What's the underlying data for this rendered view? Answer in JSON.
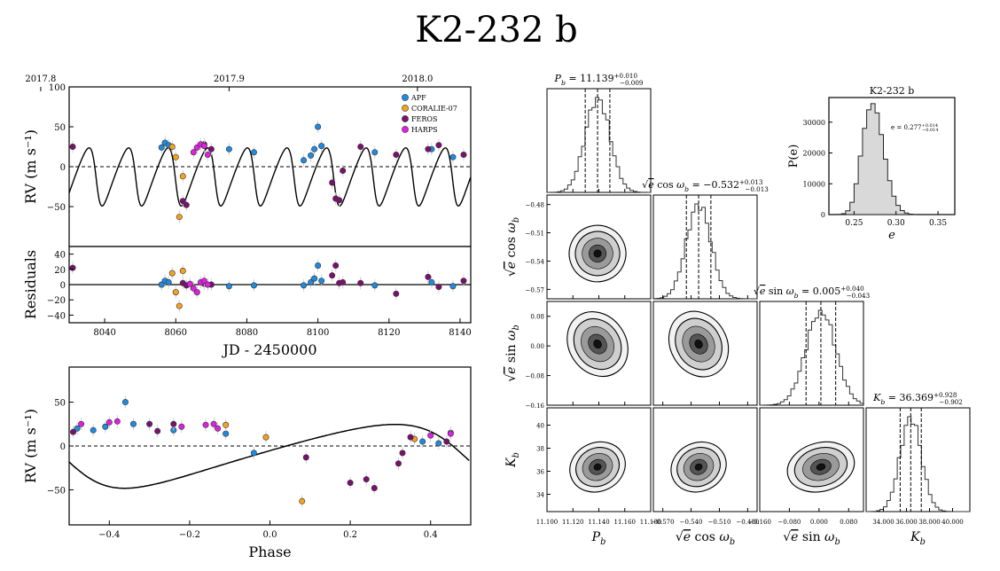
{
  "figure_title": "K2-232 b",
  "chart_data": [
    {
      "id": "rv_time",
      "type": "scatter",
      "title": "",
      "xlabel": "",
      "ylabel": "RV (m s⁻¹)",
      "xlim": [
        8030,
        8143
      ],
      "ylim": [
        -100,
        100
      ],
      "xticks": [],
      "yticks": [
        -50,
        0,
        50,
        100
      ],
      "top_xticks": [
        {
          "value": 8022,
          "label": "2017.8"
        },
        {
          "value": 8075,
          "label": "2017.9"
        },
        {
          "value": 8128,
          "label": "2018.0"
        }
      ],
      "model": {
        "name": "Keplerian model",
        "period": 11.139,
        "K": 36.4,
        "e": 0.28,
        "tp": 8060
      },
      "legend": {
        "position": "top-right",
        "entries": [
          "APF",
          "CORALIE-07",
          "FEROS",
          "HARPS"
        ]
      },
      "series": [
        {
          "name": "APF",
          "color": "#1f8ae0",
          "points": [
            [
              8056,
              24
            ],
            [
              8057,
              30
            ],
            [
              8058,
              27
            ],
            [
              8075,
              22
            ],
            [
              8082,
              18
            ],
            [
              8096,
              8
            ],
            [
              8098,
              14
            ],
            [
              8099,
              22
            ],
            [
              8100,
              50
            ],
            [
              8101,
              26
            ],
            [
              8116,
              18
            ],
            [
              8132,
              22
            ],
            [
              8138,
              12
            ]
          ]
        },
        {
          "name": "CORALIE-07",
          "color": "#f5a21e",
          "points": [
            [
              8059,
              25
            ],
            [
              8060,
              12
            ],
            [
              8061,
              -63
            ],
            [
              8062,
              -12
            ]
          ]
        },
        {
          "name": "FEROS",
          "color": "#7a1070",
          "points": [
            [
              8031,
              25
            ],
            [
              8062,
              -43
            ],
            [
              8063,
              -48
            ],
            [
              8068,
              28
            ],
            [
              8070,
              22
            ],
            [
              8104,
              -20
            ],
            [
              8105,
              -40
            ],
            [
              8106,
              -42
            ],
            [
              8107,
              -5
            ],
            [
              8112,
              25
            ],
            [
              8122,
              15
            ],
            [
              8131,
              22
            ],
            [
              8134,
              27
            ],
            [
              8141,
              15
            ]
          ]
        },
        {
          "name": "HARPS",
          "color": "#e020e0",
          "points": [
            [
              8065,
              18
            ],
            [
              8066,
              24
            ],
            [
              8067,
              28
            ],
            [
              8068,
              26
            ],
            [
              8069,
              15
            ]
          ]
        }
      ]
    },
    {
      "id": "residuals",
      "type": "scatter",
      "title": "",
      "xlabel": "JD - 2450000",
      "ylabel": "Residuals",
      "xlim": [
        8030,
        8143
      ],
      "ylim": [
        -50,
        50
      ],
      "xticks": [
        8040,
        8060,
        8080,
        8100,
        8120,
        8140
      ],
      "yticks": [
        -40,
        -20,
        0,
        20,
        40
      ],
      "series": [
        {
          "name": "APF",
          "color": "#1f8ae0",
          "points": [
            [
              8056,
              0
            ],
            [
              8057,
              5
            ],
            [
              8058,
              3
            ],
            [
              8075,
              -2
            ],
            [
              8082,
              -1
            ],
            [
              8096,
              -1
            ],
            [
              8098,
              3
            ],
            [
              8099,
              8
            ],
            [
              8100,
              25
            ],
            [
              8101,
              5
            ],
            [
              8116,
              -1
            ],
            [
              8132,
              3
            ],
            [
              8138,
              -2
            ]
          ]
        },
        {
          "name": "CORALIE-07",
          "color": "#f5a21e",
          "points": [
            [
              8059,
              15
            ],
            [
              8060,
              -10
            ],
            [
              8061,
              -28
            ],
            [
              8062,
              18
            ]
          ]
        },
        {
          "name": "FEROS",
          "color": "#7a1070",
          "points": [
            [
              8031,
              22
            ],
            [
              8062,
              2
            ],
            [
              8063,
              -1
            ],
            [
              8068,
              1
            ],
            [
              8070,
              0
            ],
            [
              8104,
              12
            ],
            [
              8105,
              25
            ],
            [
              8106,
              2
            ],
            [
              8107,
              3
            ],
            [
              8112,
              2
            ],
            [
              8122,
              -12
            ],
            [
              8131,
              10
            ],
            [
              8134,
              -3
            ],
            [
              8141,
              5
            ]
          ]
        },
        {
          "name": "HARPS",
          "color": "#e020e0",
          "points": [
            [
              8064,
              1
            ],
            [
              8065,
              -5
            ],
            [
              8066,
              -10
            ],
            [
              8067,
              3
            ],
            [
              8068,
              5
            ],
            [
              8069,
              0
            ]
          ]
        }
      ]
    },
    {
      "id": "rv_phase",
      "type": "scatter",
      "title": "",
      "xlabel": "Phase",
      "ylabel": "RV (m s⁻¹)",
      "xlim": [
        -0.5,
        0.5
      ],
      "ylim": [
        -90,
        90
      ],
      "xticks": [
        -0.4,
        -0.2,
        0.0,
        0.2,
        0.4
      ],
      "yticks": [
        -50,
        0,
        50
      ],
      "model": {
        "name": "Phased Keplerian model",
        "K": 36.4,
        "e": 0.28
      },
      "series": [
        {
          "name": "APF",
          "color": "#1f8ae0",
          "points": [
            [
              -0.48,
              20
            ],
            [
              -0.44,
              18
            ],
            [
              -0.41,
              22
            ],
            [
              -0.36,
              50
            ],
            [
              -0.34,
              25
            ],
            [
              -0.24,
              18
            ],
            [
              -0.11,
              14
            ],
            [
              -0.04,
              -8
            ],
            [
              0.38,
              5
            ],
            [
              0.42,
              3
            ],
            [
              0.45,
              15
            ]
          ]
        },
        {
          "name": "CORALIE-07",
          "color": "#f5a21e",
          "points": [
            [
              -0.11,
              24
            ],
            [
              -0.01,
              10
            ],
            [
              0.08,
              -63
            ],
            [
              0.36,
              8
            ]
          ]
        },
        {
          "name": "FEROS",
          "color": "#7a1070",
          "points": [
            [
              -0.49,
              16
            ],
            [
              -0.3,
              25
            ],
            [
              -0.28,
              17
            ],
            [
              -0.24,
              25
            ],
            [
              0.09,
              -13
            ],
            [
              0.2,
              -42
            ],
            [
              0.24,
              -38
            ],
            [
              0.26,
              -48
            ],
            [
              0.32,
              -20
            ],
            [
              0.33,
              -8
            ],
            [
              0.35,
              10
            ],
            [
              0.44,
              5
            ]
          ]
        },
        {
          "name": "HARPS",
          "color": "#e020e0",
          "points": [
            [
              -0.47,
              25
            ],
            [
              -0.4,
              27
            ],
            [
              -0.38,
              28
            ],
            [
              -0.22,
              22
            ],
            [
              -0.16,
              24
            ],
            [
              -0.14,
              25
            ],
            [
              -0.13,
              20
            ],
            [
              0.4,
              12
            ],
            [
              0.45,
              14
            ]
          ]
        }
      ]
    },
    {
      "id": "ecc_hist",
      "type": "histogram",
      "title": "K2-232 b",
      "xlabel": "e",
      "ylabel": "P(e)",
      "xlim": [
        0.22,
        0.37
      ],
      "ylim": [
        0,
        38000
      ],
      "xticks": [
        0.25,
        0.3,
        0.35
      ],
      "yticks": [
        0,
        10000,
        20000,
        30000
      ],
      "annotation": "e = 0.277",
      "annotation_sup": "+0.014",
      "annotation_sub": "−0.014",
      "bins": {
        "start": 0.23,
        "width": 0.005,
        "counts": [
          80,
          300,
          1200,
          4000,
          10000,
          19000,
          28000,
          34000,
          36000,
          33000,
          26000,
          18000,
          11000,
          6000,
          3000,
          1300,
          500,
          150,
          40
        ]
      }
    },
    {
      "id": "corner",
      "type": "corner",
      "params": [
        {
          "label": "P",
          "sub": "b",
          "sqrt_e": false,
          "trig": "",
          "range": [
            11.1,
            11.18
          ],
          "ticks": [
            11.1,
            11.12,
            11.14,
            11.16,
            11.18
          ],
          "tick_labels": [
            "11.100",
            "11.120",
            "11.140",
            "11.160",
            "11.180"
          ],
          "median": 11.139,
          "sigma": 0.0095,
          "title_value": "11.139",
          "title_up": "+0.010",
          "title_down": "−0.009"
        },
        {
          "label": "e",
          "sub": "b",
          "sqrt_e": true,
          "trig": "cos ω",
          "range": [
            -0.58,
            -0.47
          ],
          "ticks": [
            -0.57,
            -0.54,
            -0.51,
            -0.48
          ],
          "tick_labels": [
            "−0.570",
            "−0.540",
            "−0.510",
            "−0.480"
          ],
          "left_tick_labels": [
            "−0.57",
            "−0.54",
            "−0.51",
            "−0.48"
          ],
          "median": -0.532,
          "sigma": 0.013,
          "title_value": "−0.532",
          "title_up": "+0.013",
          "title_down": "−0.013"
        },
        {
          "label": "e",
          "sub": "b",
          "sqrt_e": true,
          "trig": "sin ω",
          "range": [
            -0.16,
            0.12
          ],
          "ticks": [
            -0.16,
            -0.08,
            0.0,
            0.08
          ],
          "tick_labels": [
            "−0.160",
            "−0.080",
            "0.000",
            "0.080"
          ],
          "left_tick_labels": [
            "−0.16",
            "−0.08",
            "0.00",
            "0.08"
          ],
          "median": 0.005,
          "sigma": 0.04,
          "title_value": "0.005",
          "title_up": "+0.040",
          "title_down": "−0.043"
        },
        {
          "label": "K",
          "sub": "b",
          "sqrt_e": false,
          "trig": "",
          "range": [
            32.5,
            41.5
          ],
          "ticks": [
            34,
            36,
            38,
            40
          ],
          "tick_labels": [
            "34.000",
            "36.000",
            "38.000",
            "40.000"
          ],
          "left_tick_labels": [
            "34",
            "36",
            "38",
            "40"
          ],
          "median": 36.369,
          "sigma": 0.915,
          "title_value": "36.369",
          "title_up": "+0.928",
          "title_down": "−0.902"
        }
      ]
    }
  ]
}
